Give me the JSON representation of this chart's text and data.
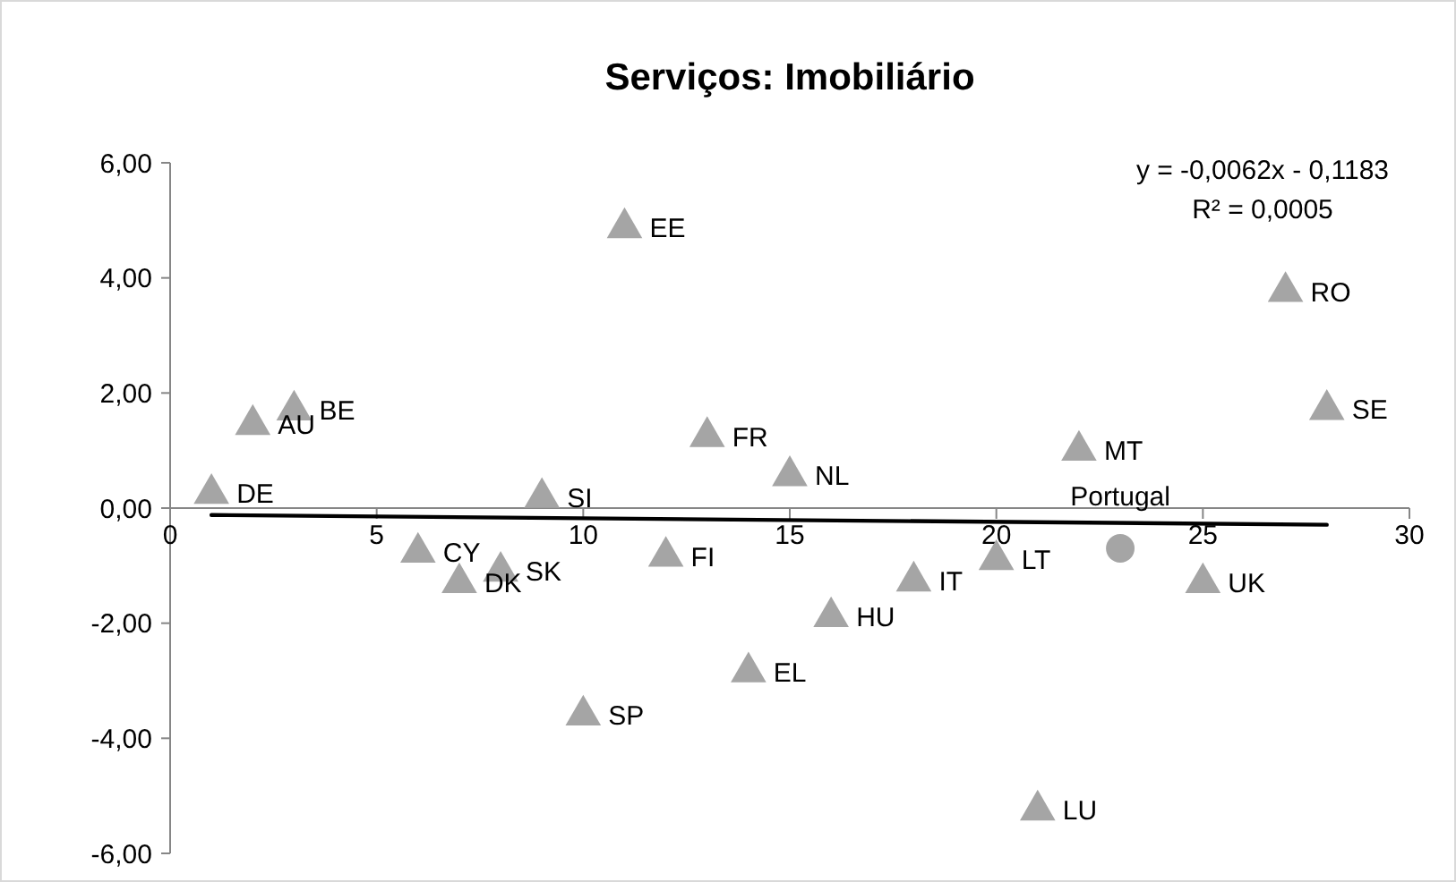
{
  "chart_data": {
    "type": "scatter",
    "title": "Serviços: Imobiliário",
    "xlim": [
      0,
      30
    ],
    "xticks": [
      0,
      5,
      10,
      15,
      20,
      25,
      30
    ],
    "ylim": [
      -6,
      6
    ],
    "yticks": [
      {
        "value": -6,
        "label": "-6,00"
      },
      {
        "value": -4,
        "label": "-4,00"
      },
      {
        "value": -2,
        "label": "-2,00"
      },
      {
        "value": 0,
        "label": "0,00"
      },
      {
        "value": 2,
        "label": "2,00"
      },
      {
        "value": 4,
        "label": "4,00"
      },
      {
        "value": 6,
        "label": "6,00"
      }
    ],
    "grid": false,
    "series": [
      {
        "marker": "triangle",
        "color": "#a5a5a5",
        "x": [
          1,
          2,
          3,
          6,
          7,
          8,
          9,
          10,
          11,
          12,
          13,
          14,
          15,
          16,
          18,
          20,
          21,
          22,
          25,
          27,
          28
        ],
        "values": [
          0.25,
          1.45,
          1.7,
          -0.77,
          -1.3,
          -1.1,
          0.18,
          -3.6,
          4.87,
          -0.84,
          1.24,
          -2.85,
          0.56,
          -1.89,
          -1.27,
          -0.9,
          -5.25,
          1.0,
          -1.3,
          3.76,
          1.71
        ]
      },
      {
        "marker": "circle",
        "color": "#a5a5a5",
        "x": [
          23
        ],
        "values": [
          -0.7
        ]
      },
      {
        "type": "line",
        "line_style": "solid",
        "color": "#000000",
        "x": [
          1,
          28
        ],
        "values": [
          -0.12,
          -0.29
        ]
      }
    ],
    "annotations": [
      {
        "text": "DE",
        "x": 1,
        "y": 0.25
      },
      {
        "text": "AU",
        "x": 2,
        "y": 1.45
      },
      {
        "text": "BE",
        "x": 3,
        "y": 1.7
      },
      {
        "text": "CY",
        "x": 6,
        "y": -0.77
      },
      {
        "text": "DK",
        "x": 7,
        "y": -1.3
      },
      {
        "text": "SK",
        "x": 8,
        "y": -1.1
      },
      {
        "text": "SI",
        "x": 9,
        "y": 0.18
      },
      {
        "text": "SP",
        "x": 10,
        "y": -3.6
      },
      {
        "text": "EE",
        "x": 11,
        "y": 4.87
      },
      {
        "text": "FI",
        "x": 12,
        "y": -0.84
      },
      {
        "text": "FR",
        "x": 13,
        "y": 1.24
      },
      {
        "text": "EL",
        "x": 14,
        "y": -2.85
      },
      {
        "text": "NL",
        "x": 15,
        "y": 0.56
      },
      {
        "text": "HU",
        "x": 16,
        "y": -1.89
      },
      {
        "text": "IT",
        "x": 18,
        "y": -1.27
      },
      {
        "text": "LT",
        "x": 20,
        "y": -0.9
      },
      {
        "text": "LU",
        "x": 21,
        "y": -5.25
      },
      {
        "text": "MT",
        "x": 22,
        "y": 1.0
      },
      {
        "text": "UK",
        "x": 25,
        "y": -1.3
      },
      {
        "text": "RO",
        "x": 27,
        "y": 3.76
      },
      {
        "text": "SE",
        "x": 28,
        "y": 1.71
      },
      {
        "text": "Portugal",
        "x": 23,
        "y": -0.7
      },
      "y = -0,0062x - 0,1183",
      "R² = 0,0005"
    ]
  }
}
